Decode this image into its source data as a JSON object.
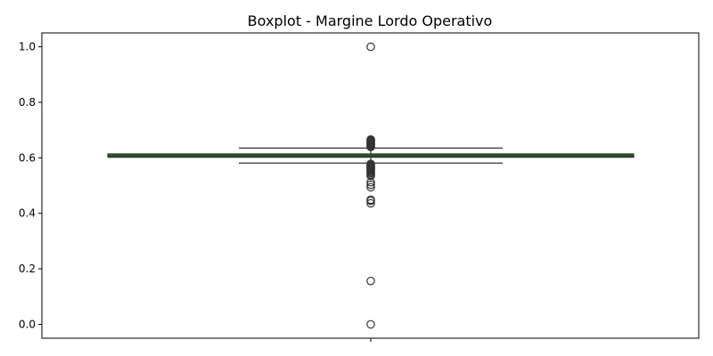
{
  "chart_data": {
    "type": "boxplot",
    "title": "Boxplot - Margine Lordo Operativo",
    "xlabel": "",
    "ylabel": "",
    "ylim": [
      -0.05,
      1.05
    ],
    "y_ticks": [
      0.0,
      0.2,
      0.4,
      0.6,
      0.8,
      1.0
    ],
    "y_tick_labels": [
      "0.0",
      "0.2",
      "0.4",
      "0.6",
      "0.8",
      "1.0"
    ],
    "grid": false,
    "box": {
      "q1": 0.602,
      "median": 0.607,
      "q3": 0.614,
      "whisker_low": 0.581,
      "whisker_high": 0.635,
      "fill_color": "#1a7a1a",
      "edge_color": "#333333"
    },
    "outliers": [
      1.0,
      0.666,
      0.663,
      0.66,
      0.657,
      0.654,
      0.651,
      0.648,
      0.645,
      0.642,
      0.639,
      0.578,
      0.574,
      0.571,
      0.568,
      0.565,
      0.562,
      0.559,
      0.556,
      0.553,
      0.549,
      0.545,
      0.54,
      0.535,
      0.512,
      0.503,
      0.494,
      0.449,
      0.445,
      0.436,
      0.156,
      0.0
    ]
  }
}
